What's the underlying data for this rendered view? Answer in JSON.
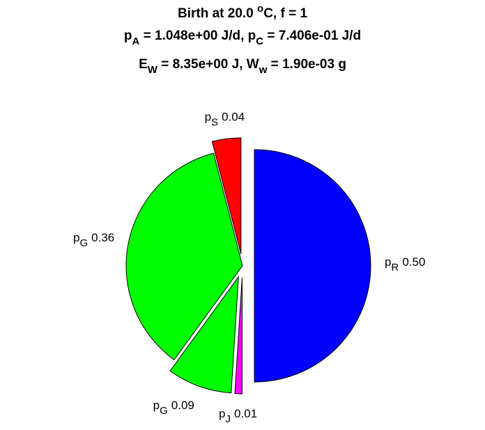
{
  "chart_data": {
    "type": "pie",
    "title": [
      [
        {
          "text": "Birth at 20.0 "
        },
        {
          "text": "o",
          "script": "sup"
        },
        {
          "text": "C, f = 1"
        }
      ],
      [
        {
          "text": "p"
        },
        {
          "text": "A",
          "script": "sub"
        },
        {
          "text": " = 1.048e+00 J/d, p"
        },
        {
          "text": "C",
          "script": "sub"
        },
        {
          "text": " = 7.406e-01 J/d"
        }
      ],
      [
        {
          "text": "E"
        },
        {
          "text": "W",
          "script": "sub"
        },
        {
          "text": " = 8.35e+00 J, W"
        },
        {
          "text": "w",
          "script": "sub"
        },
        {
          "text": " = 1.90e-03 g"
        }
      ]
    ],
    "categories": [
      [
        "p",
        "R"
      ],
      [
        "p",
        "J"
      ],
      [
        "p",
        "G"
      ],
      [
        "p",
        "G"
      ],
      [
        "p",
        "S"
      ]
    ],
    "values": [
      0.5,
      0.01,
      0.09,
      0.36,
      0.04
    ],
    "value_labels": [
      "0.50",
      "0.01",
      "0.09",
      "0.36",
      "0.04"
    ],
    "colors": [
      "#0000ff",
      "#ff00ff",
      "#00ff00",
      "#00ff00",
      "#ff0000"
    ],
    "explode": [
      true,
      true,
      true,
      false,
      true
    ],
    "direction": "clockwise"
  }
}
